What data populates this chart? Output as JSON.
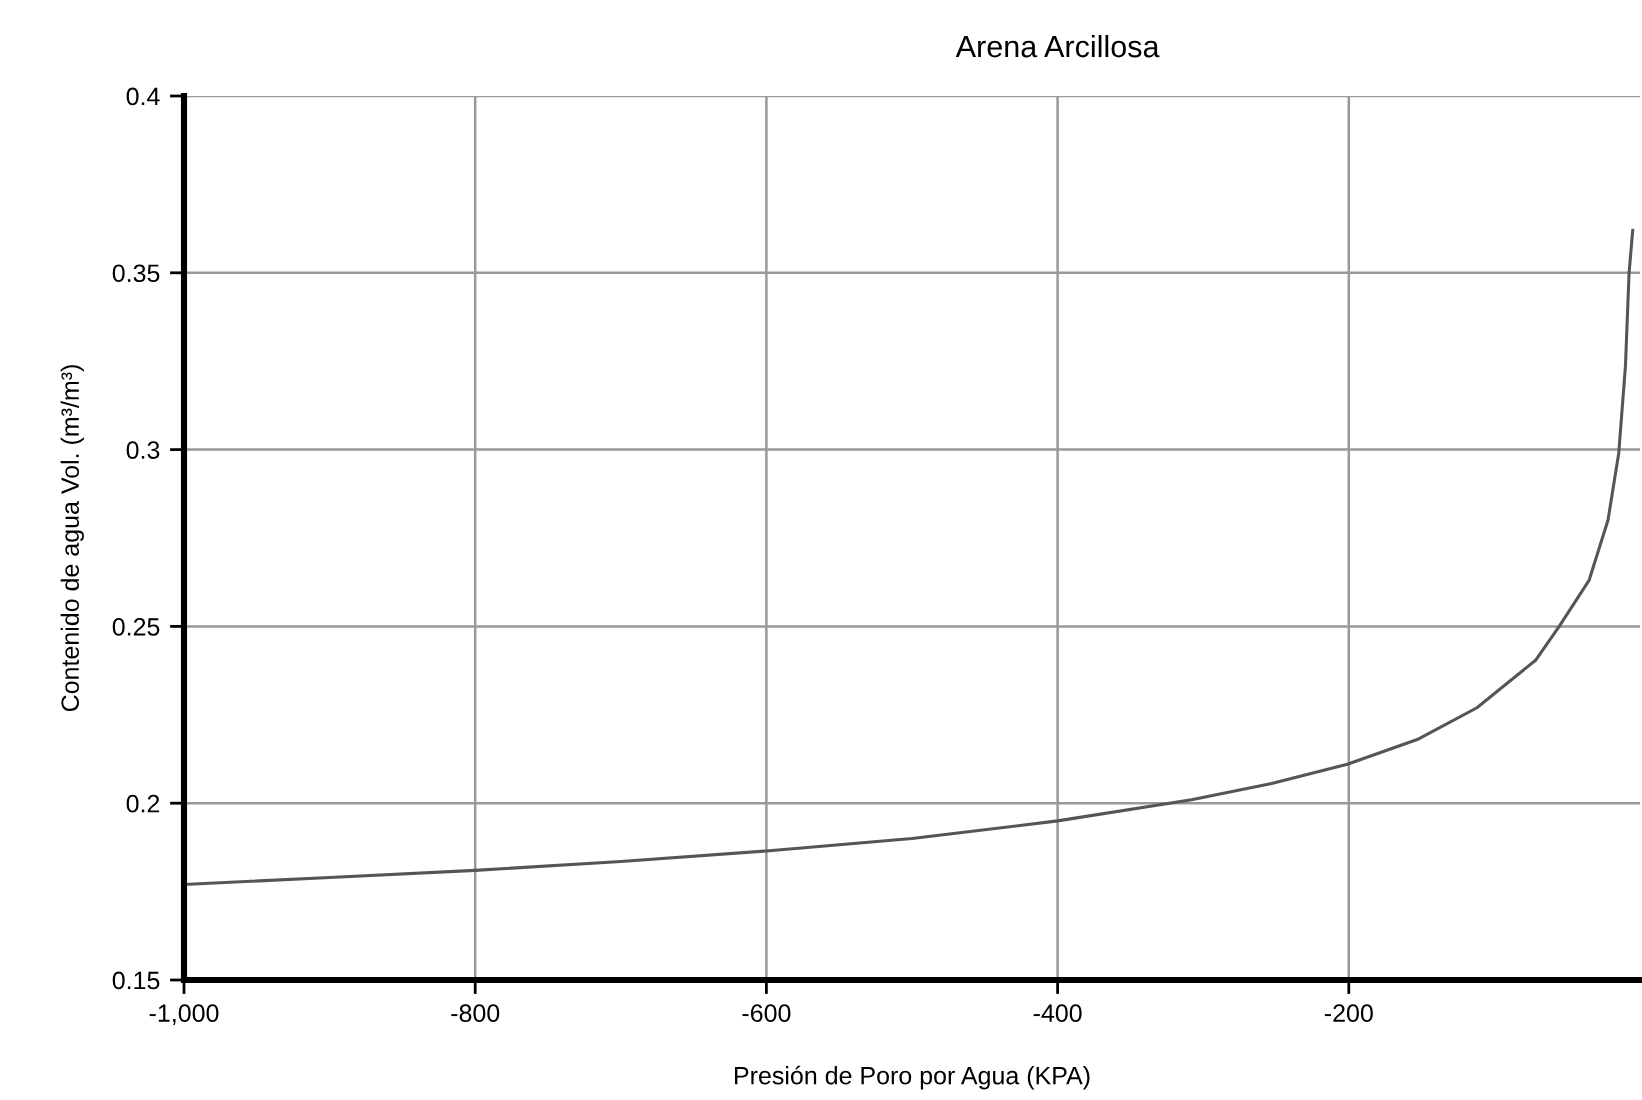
{
  "chart_data": {
    "type": "line",
    "title": "Arena Arcillosa",
    "xlabel": "Presión de Poro por Agua (KPA)",
    "ylabel": "Contenido de agua Vol. (m³/m³)",
    "x": [
      -1000,
      -900,
      -800,
      -700,
      -600,
      -500,
      -400,
      -308,
      -253,
      -201,
      -153,
      -112,
      -71.5,
      -55.5,
      -35,
      -22,
      -14.6,
      -10,
      -7.5,
      -5
    ],
    "series": [
      {
        "color": "#555555",
        "values": [
          0.177,
          0.179,
          0.181,
          0.1835,
          0.1865,
          0.19,
          0.195,
          0.201,
          0.2056,
          0.211,
          0.218,
          0.227,
          0.2405,
          0.25,
          0.263,
          0.28,
          0.299,
          0.3236,
          0.35,
          0.362
        ]
      }
    ],
    "xlim": [
      -1000,
      0
    ],
    "xticks": [
      {
        "value": -1000,
        "label": "-1,000"
      },
      -800,
      -600,
      -400,
      -200
    ],
    "ylim": [
      0.15,
      0.4
    ],
    "yticks": [
      0.15,
      0.2,
      0.25,
      0.3,
      0.35,
      0.4
    ],
    "grid": true,
    "marker": "none",
    "line_style": "solid",
    "legend": false
  }
}
